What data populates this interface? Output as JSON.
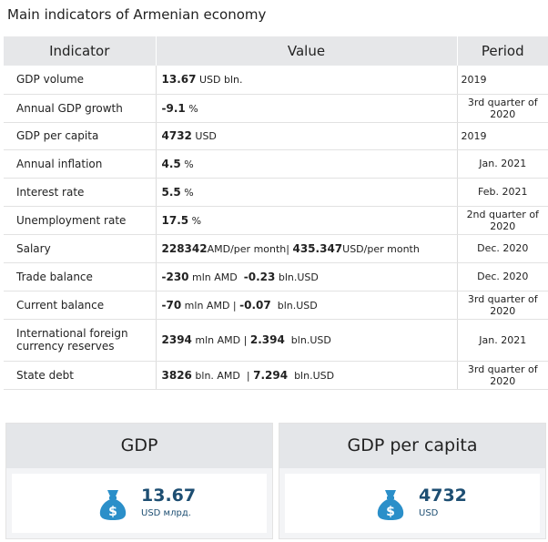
{
  "title": "Main indicators of Armenian economy",
  "table": {
    "headers": [
      "Indicator",
      "Value",
      "Period"
    ],
    "rows": [
      {
        "name": "GDP volume",
        "v1": "13.67",
        "u1": " USD bln.",
        "sep": "",
        "v2": "",
        "u2": "",
        "period": "2019"
      },
      {
        "name": "Annual GDP growth",
        "v1": "-9.1",
        "u1": " %",
        "sep": "",
        "v2": "",
        "u2": "",
        "period": "3rd quarter of 2020"
      },
      {
        "name": "GDP per capita",
        "v1": "4732",
        "u1": " USD",
        "sep": "",
        "v2": "",
        "u2": "",
        "period": "2019"
      },
      {
        "name": "Annual inflation",
        "v1": "4.5",
        "u1": " %",
        "sep": "",
        "v2": "",
        "u2": "",
        "period": "Jan. 2021"
      },
      {
        "name": "Interest rate",
        "v1": "5.5",
        "u1": " %",
        "sep": "",
        "v2": "",
        "u2": "",
        "period": "Feb. 2021"
      },
      {
        "name": "Unemployment rate",
        "v1": "17.5",
        "u1": " %",
        "sep": "",
        "v2": "",
        "u2": "",
        "period": "2nd quarter of 2020"
      },
      {
        "name": "Salary",
        "v1": "228342",
        "u1": "AMD/per month",
        "sep": "| ",
        "v2": "435.347",
        "u2": "USD/per month",
        "period": "Dec. 2020"
      },
      {
        "name": "Trade balance",
        "v1": "-230",
        "u1": " mln AMD",
        "sep": "  ",
        "v2": "-0.23",
        "u2": " bln.USD",
        "period": "Dec. 2020"
      },
      {
        "name": "Current balance",
        "v1": "-70",
        "u1": " mln AMD",
        "sep": " | ",
        "v2": "-0.07",
        "u2": "  bln.USD",
        "period": "3rd quarter of 2020"
      },
      {
        "name": "International foreign currency reserves",
        "v1": "2394",
        "u1": " mln AMD",
        "sep": " | ",
        "v2": "2.394",
        "u2": "  bln.USD",
        "period": "Jan. 2021"
      },
      {
        "name": "State debt",
        "v1": "3826",
        "u1": " bln. AMD",
        "sep": "  | ",
        "v2": "7.294",
        "u2": "  bln.USD",
        "period": "3rd quarter of 2020"
      }
    ]
  },
  "cards": [
    {
      "title": "GDP",
      "value": "13.67",
      "unit": "USD млрд.",
      "icon": "money-bag-icon"
    },
    {
      "title": "GDP per capita",
      "value": "4732",
      "unit": "USD",
      "icon": "money-bag-icon"
    }
  ],
  "colors": {
    "header_bg": "#e6e7e9",
    "accent": "#1d4e72",
    "icon": "#2b8fc9"
  }
}
